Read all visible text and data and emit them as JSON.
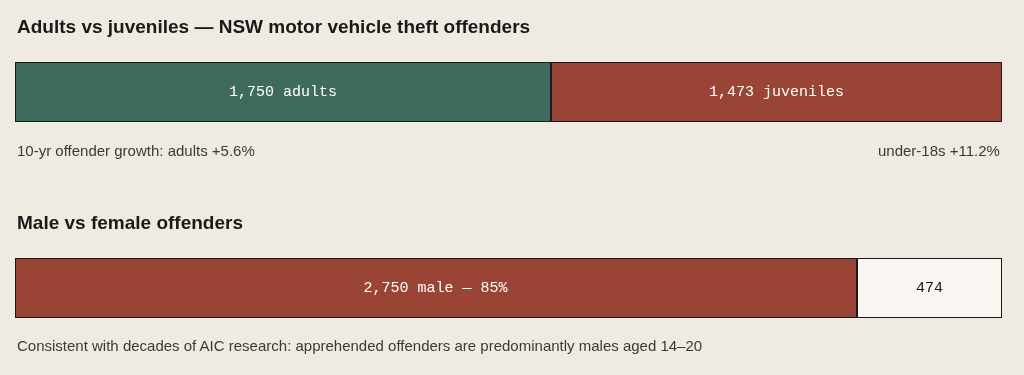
{
  "chart_data": [
    {
      "type": "bar",
      "orientation": "horizontal",
      "stacked": true,
      "tick_labels": false,
      "title": "Adults vs juveniles — NSW motor vehicle theft offenders",
      "categories": [
        null
      ],
      "series": [
        {
          "color": "#3f6b5f",
          "values": [
            1750
          ],
          "value_labels": [
            "1,750 adults"
          ]
        },
        {
          "color": "#9a4436",
          "values": [
            1473
          ],
          "value_labels": [
            "1,473 juveniles"
          ]
        }
      ],
      "annotations": [
        "10-yr offender growth: adults +5.6%",
        "under-18s +11.2%"
      ]
    },
    {
      "type": "bar",
      "orientation": "horizontal",
      "stacked": true,
      "tick_labels": false,
      "title": "Male vs female offenders",
      "categories": [
        null
      ],
      "series": [
        {
          "color": "#9a4436",
          "values": [
            2750
          ],
          "value_labels": [
            "2,750 male — 85%"
          ]
        },
        {
          "color": "#faf7f2",
          "values": [
            474
          ],
          "value_labels": [
            "474"
          ]
        }
      ],
      "annotations": [
        "Consistent with decades of AIC research: apprehended offenders are predominantly males aged 14–20"
      ]
    }
  ]
}
